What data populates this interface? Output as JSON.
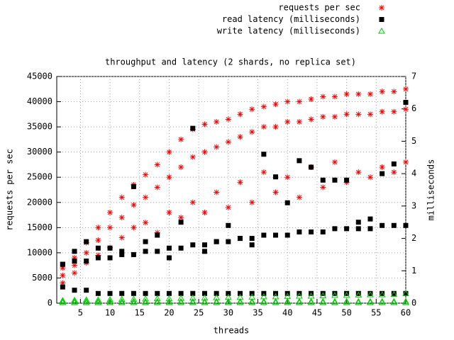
{
  "chart_data": {
    "type": "scatter",
    "title": "throughput and latency (2 shards, no replica set)",
    "x_label": "threads",
    "y_label": "requests per sec",
    "y2_label": "milliseconds",
    "xlim": [
      1,
      60
    ],
    "xticks": [
      5,
      10,
      15,
      20,
      25,
      30,
      35,
      40,
      45,
      50,
      55,
      60
    ],
    "ylim": [
      0,
      45000
    ],
    "yticks": [
      0,
      5000,
      10000,
      15000,
      20000,
      25000,
      30000,
      35000,
      40000,
      45000
    ],
    "y2lim": [
      0,
      7
    ],
    "y2ticks": [
      0,
      1,
      2,
      3,
      4,
      5,
      6,
      7
    ],
    "grid": true,
    "legend": "top-right",
    "x": [
      2,
      2,
      2,
      4,
      4,
      4,
      6,
      6,
      6,
      8,
      8,
      8,
      10,
      10,
      10,
      12,
      12,
      12,
      14,
      14,
      14,
      16,
      16,
      16,
      18,
      18,
      18,
      20,
      20,
      20,
      22,
      22,
      22,
      24,
      24,
      24,
      26,
      26,
      26,
      28,
      28,
      28,
      30,
      30,
      30,
      32,
      32,
      32,
      34,
      34,
      34,
      36,
      36,
      36,
      38,
      38,
      38,
      40,
      40,
      40,
      42,
      42,
      42,
      44,
      44,
      44,
      46,
      46,
      46,
      48,
      48,
      48,
      50,
      50,
      50,
      52,
      52,
      52,
      54,
      54,
      54,
      56,
      56,
      56,
      58,
      58,
      58,
      60,
      60,
      60
    ],
    "series": [
      {
        "name": "requests per sec",
        "color": "#ff0000",
        "marker": "asterisk",
        "values": [
          7000,
          5500,
          4000,
          9000,
          7500,
          6000,
          12000,
          10000,
          8000,
          15000,
          12500,
          9500,
          18000,
          15000,
          11000,
          21000,
          17000,
          13000,
          23500,
          19500,
          15000,
          25500,
          21000,
          16000,
          27500,
          23000,
          14000,
          30000,
          25000,
          18000,
          32500,
          27000,
          17000,
          34500,
          29000,
          20000,
          35500,
          30000,
          18000,
          36000,
          31000,
          22000,
          36500,
          32000,
          19000,
          37500,
          33000,
          24000,
          38500,
          34000,
          20000,
          39000,
          35000,
          26000,
          39500,
          35000,
          22000,
          40000,
          36000,
          25000,
          40000,
          36000,
          21000,
          40500,
          36500,
          27000,
          41000,
          37000,
          23000,
          41000,
          37000,
          28000,
          41500,
          37500,
          24000,
          41500,
          37500,
          26000,
          41500,
          37500,
          25000,
          42000,
          38000,
          27000,
          42000,
          38000,
          26000,
          42500,
          38500,
          28000
        ]
      },
      {
        "name": "read latency (milliseconds)",
        "color": "#000000",
        "marker": "square",
        "axis": "y2",
        "values": [
          0.5,
          1.2,
          1.2,
          0.4,
          1.3,
          1.6,
          0.4,
          1.3,
          1.9,
          0.3,
          1.4,
          1.7,
          0.3,
          1.4,
          1.7,
          0.3,
          1.5,
          1.6,
          0.3,
          1.5,
          3.6,
          0.3,
          1.6,
          1.9,
          0.3,
          1.6,
          2.1,
          0.3,
          1.7,
          1.4,
          0.3,
          1.7,
          2.5,
          0.3,
          1.8,
          5.4,
          0.3,
          1.8,
          1.6,
          0.3,
          1.9,
          1.9,
          0.3,
          1.9,
          2.4,
          0.3,
          2.0,
          2.0,
          0.3,
          2.0,
          1.8,
          0.3,
          2.1,
          4.6,
          0.3,
          2.1,
          3.9,
          0.3,
          2.1,
          3.1,
          0.3,
          2.2,
          4.4,
          0.3,
          2.2,
          4.2,
          0.3,
          2.2,
          3.8,
          0.3,
          2.3,
          3.8,
          0.3,
          2.3,
          3.8,
          0.3,
          2.3,
          2.5,
          0.3,
          2.3,
          2.6,
          0.3,
          2.4,
          4.0,
          0.3,
          2.4,
          4.3,
          0.3,
          2.4,
          6.2
        ]
      },
      {
        "name": "write latency (milliseconds)",
        "color": "#00cc00",
        "marker": "triangle",
        "axis": "y2",
        "values": [
          0.02,
          0.05,
          0.08,
          0.02,
          0.05,
          0.09,
          0.02,
          0.05,
          0.1,
          0.02,
          0.05,
          0.1,
          0.02,
          0.05,
          0.11,
          0.02,
          0.05,
          0.12,
          0.02,
          0.05,
          0.12,
          0.02,
          0.05,
          0.13,
          0.02,
          0.05,
          0.14,
          0.02,
          0.05,
          0.14,
          0.02,
          0.05,
          0.15,
          0.02,
          0.05,
          0.16,
          0.02,
          0.05,
          0.16,
          0.02,
          0.05,
          0.17,
          0.02,
          0.05,
          0.18,
          0.02,
          0.05,
          0.18,
          0.02,
          0.05,
          0.19,
          0.02,
          0.05,
          0.2,
          0.02,
          0.05,
          0.2,
          0.02,
          0.05,
          0.21,
          0.02,
          0.05,
          0.22,
          0.02,
          0.05,
          0.22,
          0.02,
          0.05,
          0.23,
          0.02,
          0.05,
          0.24,
          0.02,
          0.05,
          0.24,
          0.02,
          0.05,
          0.25,
          0.02,
          0.05,
          0.26,
          0.02,
          0.05,
          0.26,
          0.02,
          0.05,
          0.27,
          0.02,
          0.05,
          0.3
        ]
      }
    ]
  }
}
